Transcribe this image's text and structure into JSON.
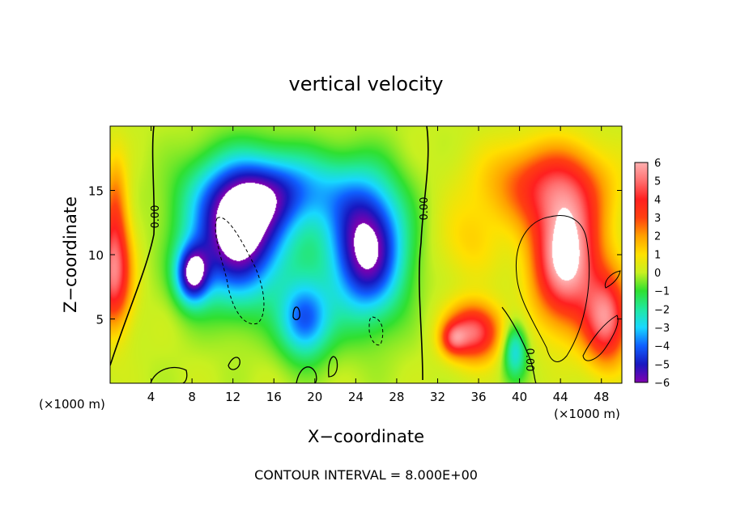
{
  "chart_data": {
    "type": "heatmap",
    "title": "vertical velocity",
    "xlabel": "X−coordinate",
    "ylabel": "Z−coordinate",
    "x_unit": "(×1000 m)",
    "x_unit_right": "(×1000 m)",
    "footer": "CONTOUR INTERVAL = 8.000E+00",
    "xlim": [
      0,
      50
    ],
    "ylim": [
      0,
      20
    ],
    "xticks": [
      4,
      8,
      12,
      16,
      20,
      24,
      28,
      32,
      36,
      40,
      44,
      48
    ],
    "yticks": [
      5,
      10,
      15
    ],
    "colorbar": {
      "labels": [
        "6",
        "5",
        "4",
        "3",
        "2",
        "1",
        "0",
        "−1",
        "−2",
        "−3",
        "−4",
        "−5",
        "−6"
      ],
      "range": [
        -6,
        6
      ]
    },
    "contour_labels": [
      "0.00",
      "0.00",
      "0.00"
    ],
    "color_stops": [
      "#8000b0",
      "#1818c0",
      "#1060ff",
      "#18d8ff",
      "#20e8a0",
      "#30e030",
      "#c8f020",
      "#ffe000",
      "#ffa000",
      "#ff4010",
      "#ff2020",
      "#ff7070",
      "#ffb0b0",
      "#ffffff"
    ],
    "features": [
      {
        "kind": "negative",
        "x": 12.5,
        "z": 11.5,
        "sx": 4.5,
        "sz": 4.8,
        "amp": -7.5
      },
      {
        "kind": "negative",
        "x": 25.0,
        "z": 10.5,
        "sx": 3.6,
        "sz": 5.0,
        "amp": -7.2
      },
      {
        "kind": "negative",
        "x": 19.0,
        "z": 5.0,
        "sx": 2.5,
        "sz": 3.0,
        "amp": -4.5
      },
      {
        "kind": "negative",
        "x": 8.0,
        "z": 8.5,
        "sx": 1.6,
        "sz": 2.2,
        "amp": -6.0
      },
      {
        "kind": "negative",
        "x": 16.5,
        "z": 15.0,
        "sx": 7.0,
        "sz": 3.0,
        "amp": -4.0
      },
      {
        "kind": "negative",
        "x": 39.5,
        "z": 2.6,
        "sx": 1.2,
        "sz": 2.2,
        "amp": -3.2
      },
      {
        "kind": "positive",
        "x": 44.5,
        "z": 10.0,
        "sx": 3.2,
        "sz": 5.0,
        "amp": 7.5
      },
      {
        "kind": "positive",
        "x": 42.5,
        "z": 15.5,
        "sx": 6.0,
        "sz": 3.2,
        "amp": 3.6
      },
      {
        "kind": "positive",
        "x": 35.5,
        "z": 4.0,
        "sx": 2.6,
        "sz": 2.2,
        "amp": 5.5
      },
      {
        "kind": "positive",
        "x": 33.5,
        "z": 3.5,
        "sx": 1.2,
        "sz": 1.2,
        "amp": 3.0
      },
      {
        "kind": "positive",
        "x": 48.5,
        "z": 5.0,
        "sx": 2.2,
        "sz": 3.5,
        "amp": 5.5
      },
      {
        "kind": "positive",
        "x": 0.3,
        "z": 8.5,
        "sx": 1.7,
        "sz": 4.0,
        "amp": 5.5
      },
      {
        "kind": "positive",
        "x": 0.5,
        "z": 14.0,
        "sx": 1.2,
        "sz": 4.0,
        "amp": 2.5
      },
      {
        "kind": "positive",
        "x": 35.0,
        "z": 11.0,
        "sx": 3.0,
        "sz": 3.0,
        "amp": 1.2
      }
    ]
  }
}
